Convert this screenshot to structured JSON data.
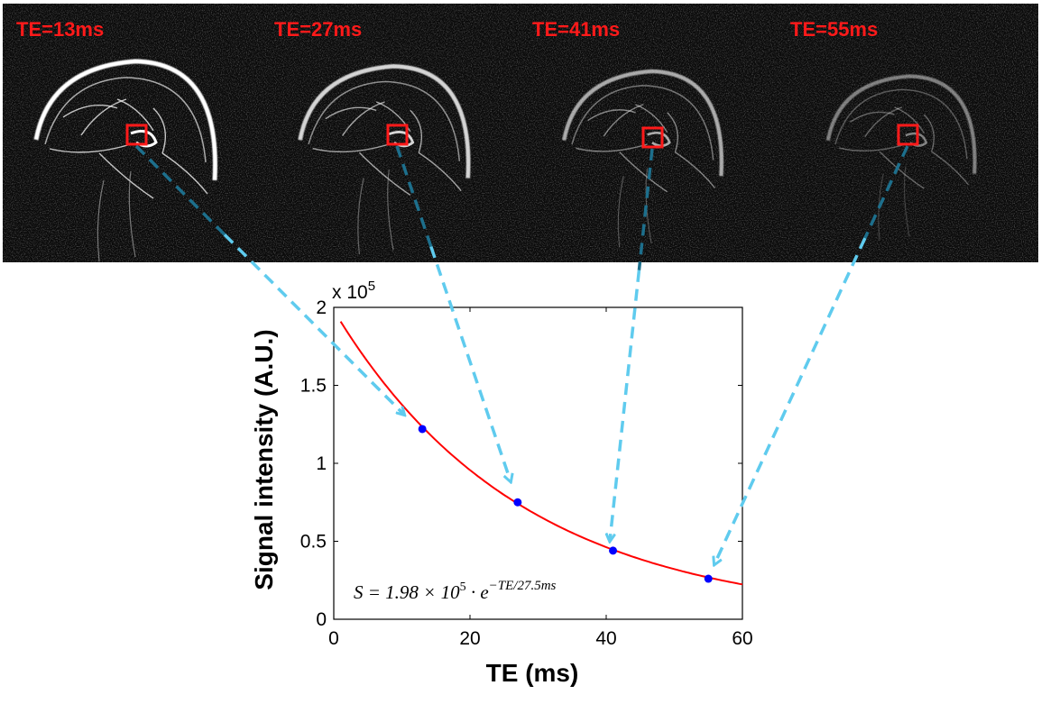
{
  "panels": [
    {
      "label": "TE=13ms"
    },
    {
      "label": "TE=27ms"
    },
    {
      "label": "TE=41ms"
    },
    {
      "label": "TE=55ms"
    }
  ],
  "colors": {
    "label": "#ff1a1a",
    "roi": "#ff1a1a",
    "fit": "#ff0000",
    "points": "#0000ff",
    "arrow_light": "#5fcbee",
    "arrow_dark": "#1d6f8c"
  },
  "chart_data": {
    "type": "scatter",
    "xlabel": "TE (ms)",
    "ylabel": "Signal intensity (A.U.)",
    "y_exponent": "x 10",
    "y_exponent_power": "5",
    "xlim": [
      0,
      60
    ],
    "ylim": [
      0,
      2
    ],
    "x_ticks": [
      "0",
      "20",
      "40",
      "60"
    ],
    "y_ticks": [
      "0",
      "0.5",
      "1",
      "1.5",
      "2"
    ],
    "points": {
      "x": [
        13,
        27,
        41,
        55
      ],
      "y": [
        1.22,
        0.75,
        0.44,
        0.26
      ]
    },
    "fit": {
      "amplitude": 1.98,
      "t2": 27.5,
      "x_start": 1,
      "x_end": 60
    },
    "formula": {
      "lhs": "S = 1.98 × 10",
      "lhs_sup": "5",
      "dot": " · e",
      "exp": "−TE/27.5ms"
    }
  }
}
